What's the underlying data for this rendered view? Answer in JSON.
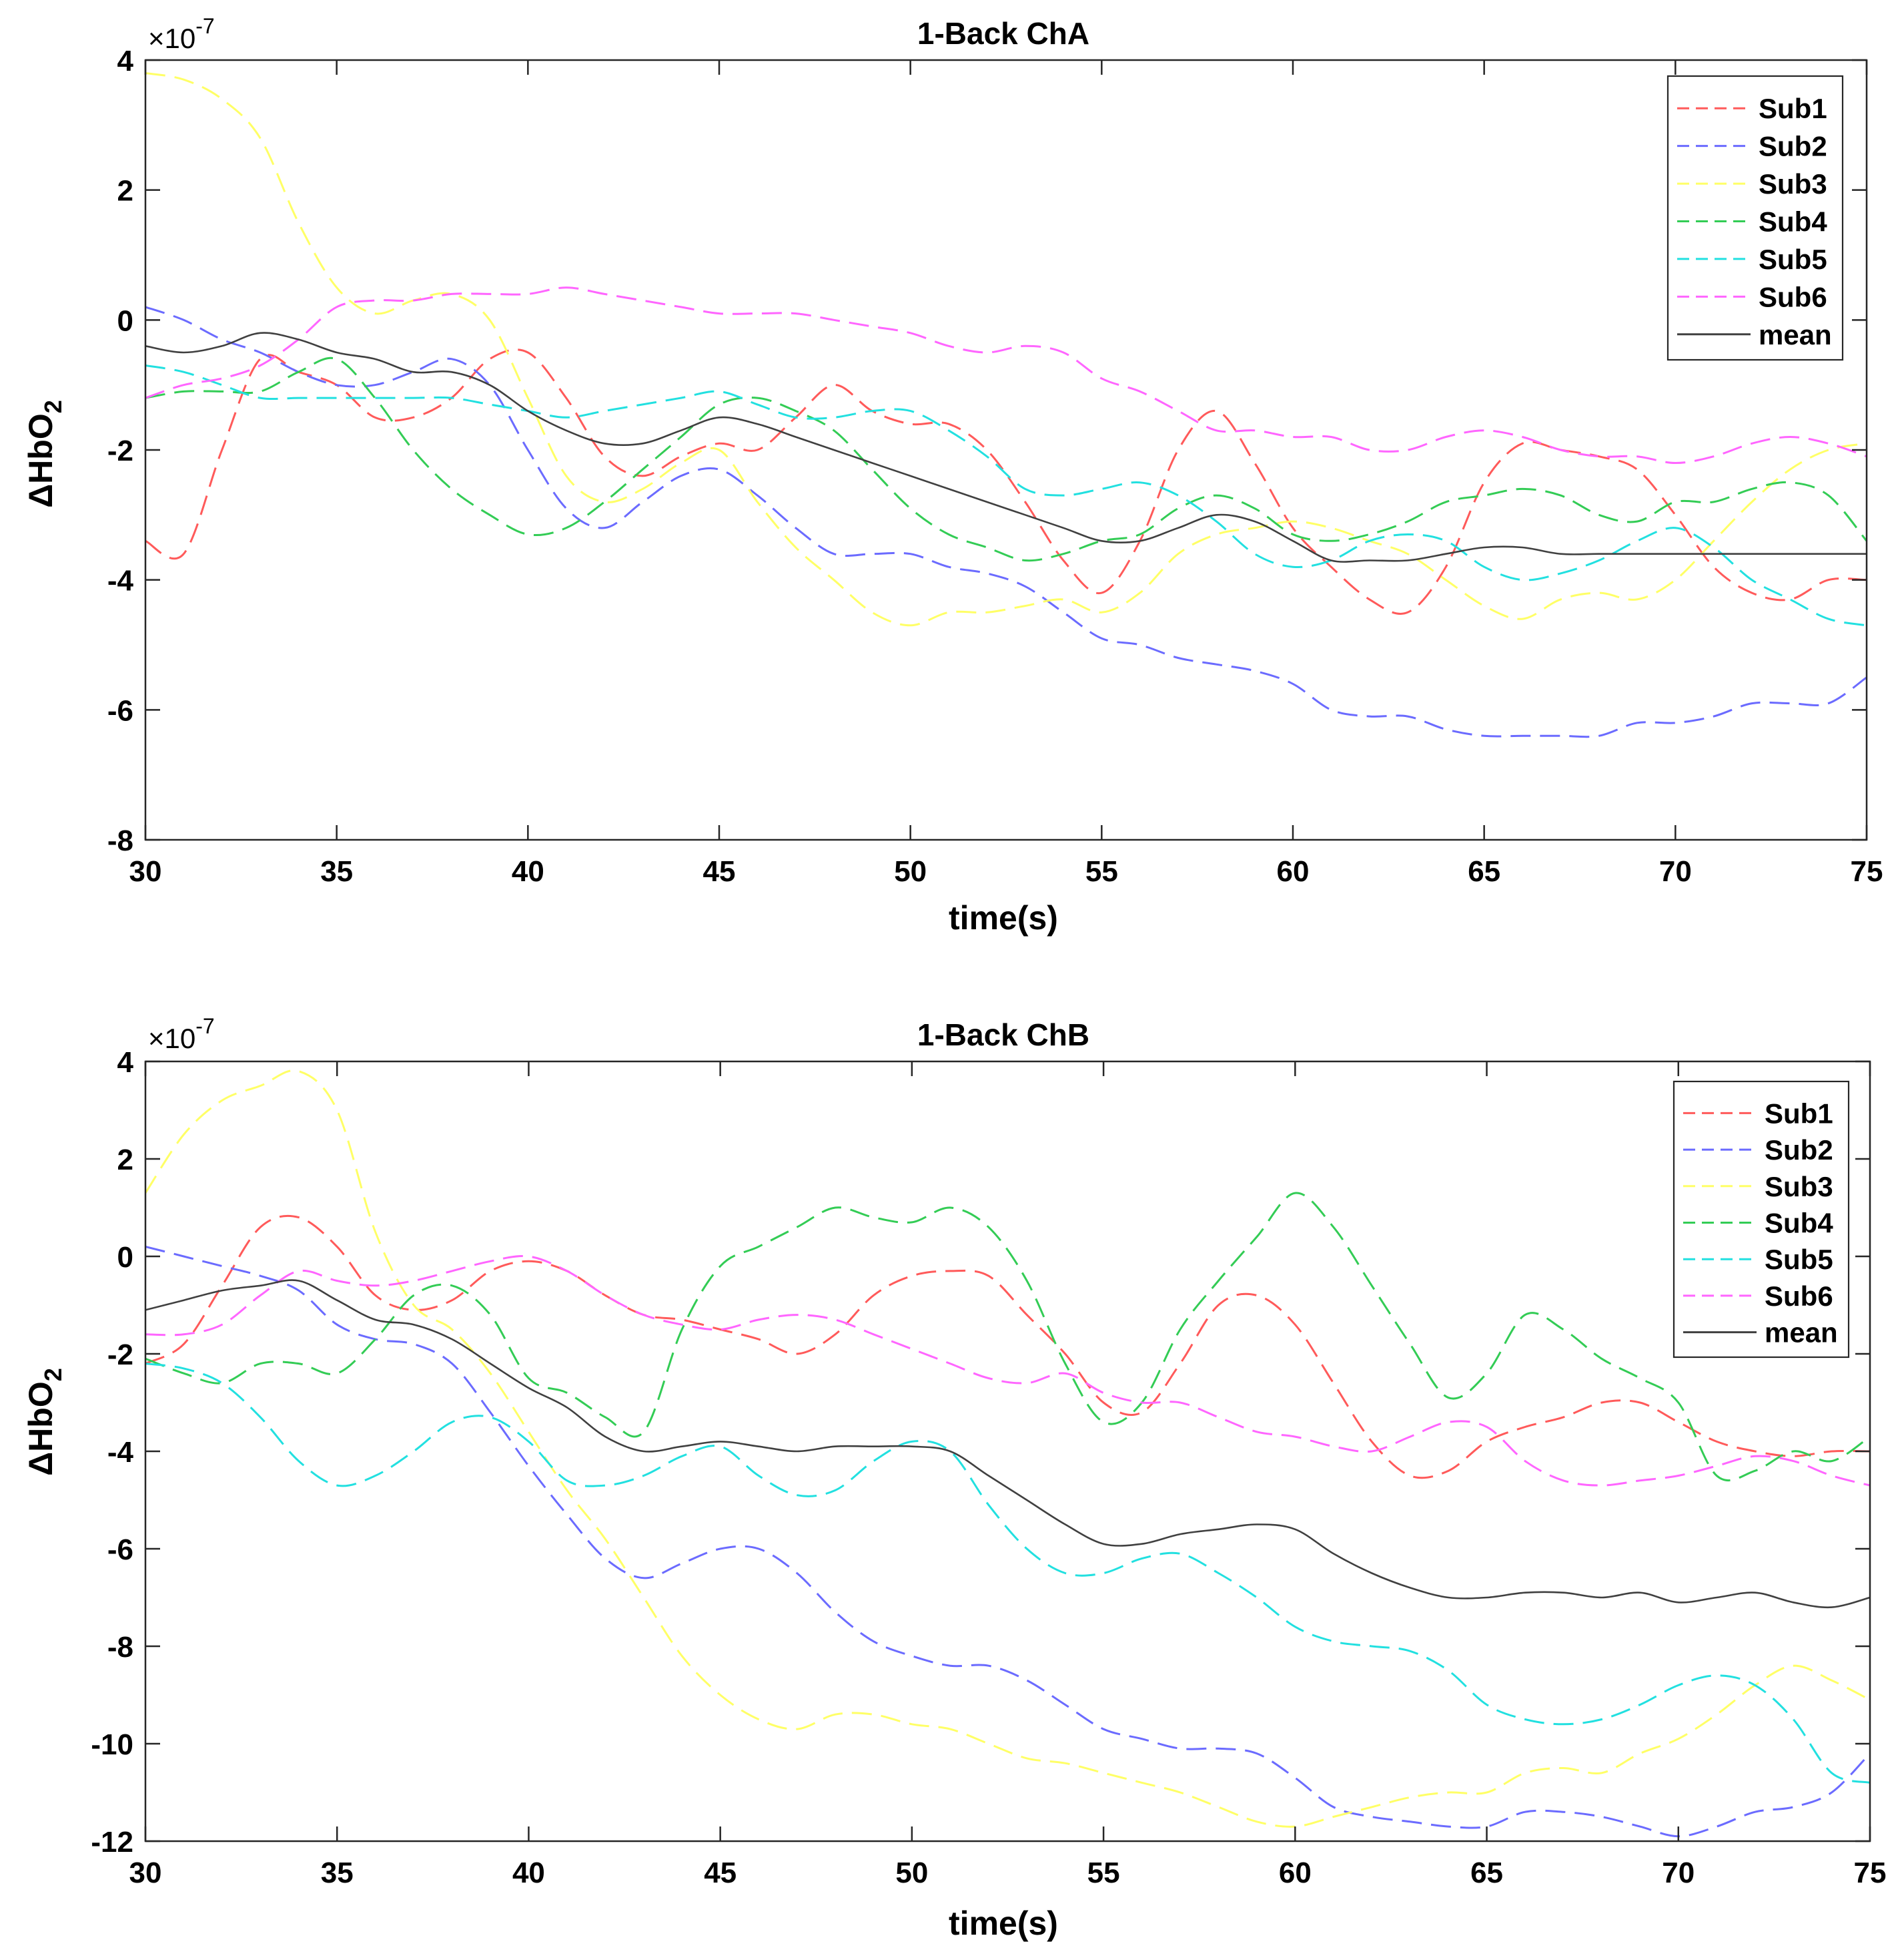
{
  "figure": {
    "exponent_base": "×10",
    "exponent": "-7"
  },
  "chart_data": [
    {
      "type": "line",
      "title": "1-Back ChA",
      "xlabel": "time(s)",
      "ylabel": "ΔHbO",
      "ylabel_sub": "2",
      "exponent_label": "×10",
      "exponent_power": "-7",
      "xlim": [
        30,
        75
      ],
      "ylim": [
        -8,
        4
      ],
      "xticks": [
        30,
        35,
        40,
        45,
        50,
        55,
        60,
        65,
        70,
        75
      ],
      "yticks": [
        -8,
        -6,
        -4,
        -2,
        0,
        2,
        4
      ],
      "legend_position": "top-right",
      "x": [
        30,
        31,
        32,
        33,
        34,
        35,
        36,
        37,
        38,
        39,
        40,
        41,
        42,
        43,
        44,
        45,
        46,
        47,
        48,
        49,
        50,
        51,
        52,
        53,
        54,
        55,
        56,
        57,
        58,
        59,
        60,
        61,
        62,
        63,
        64,
        65,
        66,
        67,
        68,
        69,
        70,
        71,
        72,
        73,
        74,
        75
      ],
      "series": [
        {
          "name": "Sub1",
          "color": "#ff5a5a",
          "dashed": true,
          "values": [
            -3.4,
            -3.6,
            -2.0,
            -0.6,
            -0.8,
            -1.0,
            -1.5,
            -1.5,
            -1.2,
            -0.6,
            -0.5,
            -1.2,
            -2.1,
            -2.4,
            -2.1,
            -1.9,
            -2.0,
            -1.5,
            -1.0,
            -1.4,
            -1.6,
            -1.6,
            -2.0,
            -2.8,
            -3.7,
            -4.2,
            -3.4,
            -2.0,
            -1.4,
            -2.2,
            -3.2,
            -3.8,
            -4.3,
            -4.5,
            -3.8,
            -2.5,
            -1.9,
            -2.0,
            -2.1,
            -2.3,
            -3.0,
            -3.8,
            -4.2,
            -4.3,
            -4.0,
            -4.0
          ]
        },
        {
          "name": "Sub2",
          "color": "#6b6bff",
          "dashed": true,
          "values": [
            0.2,
            0.0,
            -0.3,
            -0.5,
            -0.8,
            -1.0,
            -1.0,
            -0.8,
            -0.6,
            -1.0,
            -2.0,
            -2.9,
            -3.2,
            -2.8,
            -2.4,
            -2.3,
            -2.7,
            -3.2,
            -3.6,
            -3.6,
            -3.6,
            -3.8,
            -3.9,
            -4.1,
            -4.5,
            -4.9,
            -5.0,
            -5.2,
            -5.3,
            -5.4,
            -5.6,
            -6.0,
            -6.1,
            -6.1,
            -6.3,
            -6.4,
            -6.4,
            -6.4,
            -6.4,
            -6.2,
            -6.2,
            -6.1,
            -5.9,
            -5.9,
            -5.9,
            -5.5
          ]
        },
        {
          "name": "Sub3",
          "color": "#ffff66",
          "dashed": true,
          "values": [
            3.8,
            3.7,
            3.4,
            2.8,
            1.5,
            0.5,
            0.1,
            0.3,
            0.4,
            0.0,
            -1.2,
            -2.4,
            -2.8,
            -2.6,
            -2.2,
            -2.0,
            -2.8,
            -3.5,
            -4.0,
            -4.5,
            -4.7,
            -4.5,
            -4.5,
            -4.4,
            -4.3,
            -4.5,
            -4.2,
            -3.6,
            -3.3,
            -3.2,
            -3.1,
            -3.2,
            -3.4,
            -3.6,
            -4.0,
            -4.4,
            -4.6,
            -4.3,
            -4.2,
            -4.3,
            -4.0,
            -3.4,
            -2.8,
            -2.3,
            -2.0,
            -1.9
          ]
        },
        {
          "name": "Sub4",
          "color": "#33cc55",
          "dashed": true,
          "values": [
            -1.2,
            -1.1,
            -1.1,
            -1.1,
            -0.8,
            -0.6,
            -1.2,
            -2.0,
            -2.6,
            -3.0,
            -3.3,
            -3.2,
            -2.8,
            -2.3,
            -1.8,
            -1.3,
            -1.2,
            -1.4,
            -1.7,
            -2.3,
            -2.9,
            -3.3,
            -3.5,
            -3.7,
            -3.6,
            -3.4,
            -3.3,
            -2.9,
            -2.7,
            -2.9,
            -3.3,
            -3.4,
            -3.3,
            -3.1,
            -2.8,
            -2.7,
            -2.6,
            -2.7,
            -3.0,
            -3.1,
            -2.8,
            -2.8,
            -2.6,
            -2.5,
            -2.7,
            -3.4
          ]
        },
        {
          "name": "Sub5",
          "color": "#22e0e0",
          "dashed": true,
          "values": [
            -0.7,
            -0.8,
            -1.0,
            -1.2,
            -1.2,
            -1.2,
            -1.2,
            -1.2,
            -1.2,
            -1.3,
            -1.4,
            -1.5,
            -1.4,
            -1.3,
            -1.2,
            -1.1,
            -1.3,
            -1.5,
            -1.5,
            -1.4,
            -1.4,
            -1.7,
            -2.1,
            -2.6,
            -2.7,
            -2.6,
            -2.5,
            -2.7,
            -3.1,
            -3.6,
            -3.8,
            -3.7,
            -3.4,
            -3.3,
            -3.4,
            -3.8,
            -4.0,
            -3.9,
            -3.7,
            -3.4,
            -3.2,
            -3.5,
            -4.0,
            -4.3,
            -4.6,
            -4.7
          ]
        },
        {
          "name": "Sub6",
          "color": "#ff66ff",
          "dashed": true,
          "values": [
            -1.2,
            -1.0,
            -0.9,
            -0.7,
            -0.3,
            0.2,
            0.3,
            0.3,
            0.4,
            0.4,
            0.4,
            0.5,
            0.4,
            0.3,
            0.2,
            0.1,
            0.1,
            0.1,
            0.0,
            -0.1,
            -0.2,
            -0.4,
            -0.5,
            -0.4,
            -0.5,
            -0.9,
            -1.1,
            -1.4,
            -1.7,
            -1.7,
            -1.8,
            -1.8,
            -2.0,
            -2.0,
            -1.8,
            -1.7,
            -1.8,
            -2.0,
            -2.1,
            -2.1,
            -2.2,
            -2.1,
            -1.9,
            -1.8,
            -1.9,
            -2.1
          ]
        },
        {
          "name": "mean",
          "color": "#404040",
          "dashed": false,
          "values": [
            -0.4,
            -0.5,
            -0.4,
            -0.2,
            -0.3,
            -0.5,
            -0.6,
            -0.8,
            -0.8,
            -1.0,
            -1.4,
            -1.7,
            -1.9,
            -1.9,
            -1.7,
            -1.5,
            -1.6,
            -1.8,
            -2.0,
            -2.2,
            -2.4,
            -2.6,
            -2.8,
            -3.0,
            -3.2,
            -3.4,
            -3.4,
            -3.2,
            -3.0,
            -3.1,
            -3.4,
            -3.7,
            -3.7,
            -3.7,
            -3.6,
            -3.5,
            -3.5,
            -3.6,
            -3.6,
            -3.6,
            -3.6,
            -3.6,
            -3.6,
            -3.6,
            -3.6,
            -3.6
          ]
        }
      ]
    },
    {
      "type": "line",
      "title": "1-Back ChB",
      "xlabel": "time(s)",
      "ylabel": "ΔHbO",
      "ylabel_sub": "2",
      "exponent_label": "×10",
      "exponent_power": "-7",
      "xlim": [
        30,
        75
      ],
      "ylim": [
        -12,
        4
      ],
      "xticks": [
        30,
        35,
        40,
        45,
        50,
        55,
        60,
        65,
        70,
        75
      ],
      "yticks": [
        -12,
        -10,
        -8,
        -6,
        -4,
        -2,
        0,
        2,
        4
      ],
      "legend_position": "top-right",
      "x": [
        30,
        31,
        32,
        33,
        34,
        35,
        36,
        37,
        38,
        39,
        40,
        41,
        42,
        43,
        44,
        45,
        46,
        47,
        48,
        49,
        50,
        51,
        52,
        53,
        54,
        55,
        56,
        57,
        58,
        59,
        60,
        61,
        62,
        63,
        64,
        65,
        66,
        67,
        68,
        69,
        70,
        71,
        72,
        73,
        74,
        75
      ],
      "series": [
        {
          "name": "Sub1",
          "color": "#ff5a5a",
          "dashed": true,
          "values": [
            -2.2,
            -1.8,
            -0.6,
            0.6,
            0.8,
            0.2,
            -0.8,
            -1.1,
            -0.9,
            -0.3,
            -0.1,
            -0.3,
            -0.8,
            -1.2,
            -1.3,
            -1.5,
            -1.7,
            -2.0,
            -1.6,
            -0.8,
            -0.4,
            -0.3,
            -0.4,
            -1.2,
            -2.0,
            -3.0,
            -3.2,
            -2.2,
            -1.0,
            -0.8,
            -1.4,
            -2.6,
            -3.8,
            -4.5,
            -4.4,
            -3.8,
            -3.5,
            -3.3,
            -3.0,
            -3.0,
            -3.4,
            -3.8,
            -4.0,
            -4.1,
            -4.0,
            -4.0
          ]
        },
        {
          "name": "Sub2",
          "color": "#6b6bff",
          "dashed": true,
          "values": [
            0.2,
            0.0,
            -0.2,
            -0.4,
            -0.7,
            -1.4,
            -1.7,
            -1.8,
            -2.2,
            -3.2,
            -4.3,
            -5.3,
            -6.2,
            -6.6,
            -6.3,
            -6.0,
            -6.0,
            -6.5,
            -7.3,
            -7.9,
            -8.2,
            -8.4,
            -8.4,
            -8.7,
            -9.2,
            -9.7,
            -9.9,
            -10.1,
            -10.1,
            -10.2,
            -10.7,
            -11.3,
            -11.5,
            -11.6,
            -11.7,
            -11.7,
            -11.4,
            -11.4,
            -11.5,
            -11.7,
            -11.9,
            -11.7,
            -11.4,
            -11.3,
            -11.0,
            -10.2
          ]
        },
        {
          "name": "Sub3",
          "color": "#ffff66",
          "dashed": true,
          "values": [
            1.3,
            2.5,
            3.2,
            3.5,
            3.8,
            3.0,
            0.5,
            -1.0,
            -1.5,
            -2.4,
            -3.6,
            -4.8,
            -5.8,
            -7.0,
            -8.2,
            -9.0,
            -9.5,
            -9.7,
            -9.4,
            -9.4,
            -9.6,
            -9.7,
            -10.0,
            -10.3,
            -10.4,
            -10.6,
            -10.8,
            -11.0,
            -11.3,
            -11.6,
            -11.7,
            -11.5,
            -11.3,
            -11.1,
            -11.0,
            -11.0,
            -10.6,
            -10.5,
            -10.6,
            -10.2,
            -9.9,
            -9.4,
            -8.8,
            -8.4,
            -8.7,
            -9.1
          ]
        },
        {
          "name": "Sub4",
          "color": "#33cc55",
          "dashed": true,
          "values": [
            -2.1,
            -2.4,
            -2.6,
            -2.2,
            -2.2,
            -2.4,
            -1.7,
            -0.8,
            -0.6,
            -1.2,
            -2.5,
            -2.8,
            -3.3,
            -3.6,
            -1.5,
            -0.2,
            0.2,
            0.6,
            1.0,
            0.8,
            0.7,
            1.0,
            0.6,
            -0.5,
            -2.2,
            -3.4,
            -3.0,
            -1.5,
            -0.5,
            0.4,
            1.3,
            0.6,
            -0.6,
            -1.8,
            -2.9,
            -2.4,
            -1.2,
            -1.5,
            -2.1,
            -2.5,
            -3.0,
            -4.5,
            -4.4,
            -4.0,
            -4.2,
            -3.7
          ]
        },
        {
          "name": "Sub5",
          "color": "#22e0e0",
          "dashed": true,
          "values": [
            -2.2,
            -2.3,
            -2.6,
            -3.3,
            -4.2,
            -4.7,
            -4.5,
            -4.0,
            -3.4,
            -3.3,
            -3.8,
            -4.6,
            -4.7,
            -4.5,
            -4.1,
            -3.9,
            -4.5,
            -4.9,
            -4.8,
            -4.2,
            -3.8,
            -4.0,
            -5.1,
            -6.0,
            -6.5,
            -6.5,
            -6.2,
            -6.1,
            -6.5,
            -7.0,
            -7.6,
            -7.9,
            -8.0,
            -8.1,
            -8.5,
            -9.2,
            -9.5,
            -9.6,
            -9.5,
            -9.2,
            -8.8,
            -8.6,
            -8.8,
            -9.5,
            -10.6,
            -10.8
          ]
        },
        {
          "name": "Sub6",
          "color": "#ff66ff",
          "dashed": true,
          "values": [
            -1.6,
            -1.6,
            -1.4,
            -0.8,
            -0.3,
            -0.5,
            -0.6,
            -0.5,
            -0.3,
            -0.1,
            0.0,
            -0.3,
            -0.8,
            -1.2,
            -1.4,
            -1.5,
            -1.3,
            -1.2,
            -1.3,
            -1.6,
            -1.9,
            -2.2,
            -2.5,
            -2.6,
            -2.4,
            -2.8,
            -3.0,
            -3.0,
            -3.3,
            -3.6,
            -3.7,
            -3.9,
            -4.0,
            -3.7,
            -3.4,
            -3.5,
            -4.2,
            -4.6,
            -4.7,
            -4.6,
            -4.5,
            -4.3,
            -4.1,
            -4.2,
            -4.5,
            -4.7
          ]
        },
        {
          "name": "mean",
          "color": "#404040",
          "dashed": false,
          "values": [
            -1.1,
            -0.9,
            -0.7,
            -0.6,
            -0.5,
            -0.9,
            -1.3,
            -1.4,
            -1.7,
            -2.2,
            -2.7,
            -3.1,
            -3.7,
            -4.0,
            -3.9,
            -3.8,
            -3.9,
            -4.0,
            -3.9,
            -3.9,
            -3.9,
            -4.0,
            -4.5,
            -5.0,
            -5.5,
            -5.9,
            -5.9,
            -5.7,
            -5.6,
            -5.5,
            -5.6,
            -6.1,
            -6.5,
            -6.8,
            -7.0,
            -7.0,
            -6.9,
            -6.9,
            -7.0,
            -6.9,
            -7.1,
            -7.0,
            -6.9,
            -7.1,
            -7.2,
            -7.0
          ]
        }
      ]
    }
  ]
}
